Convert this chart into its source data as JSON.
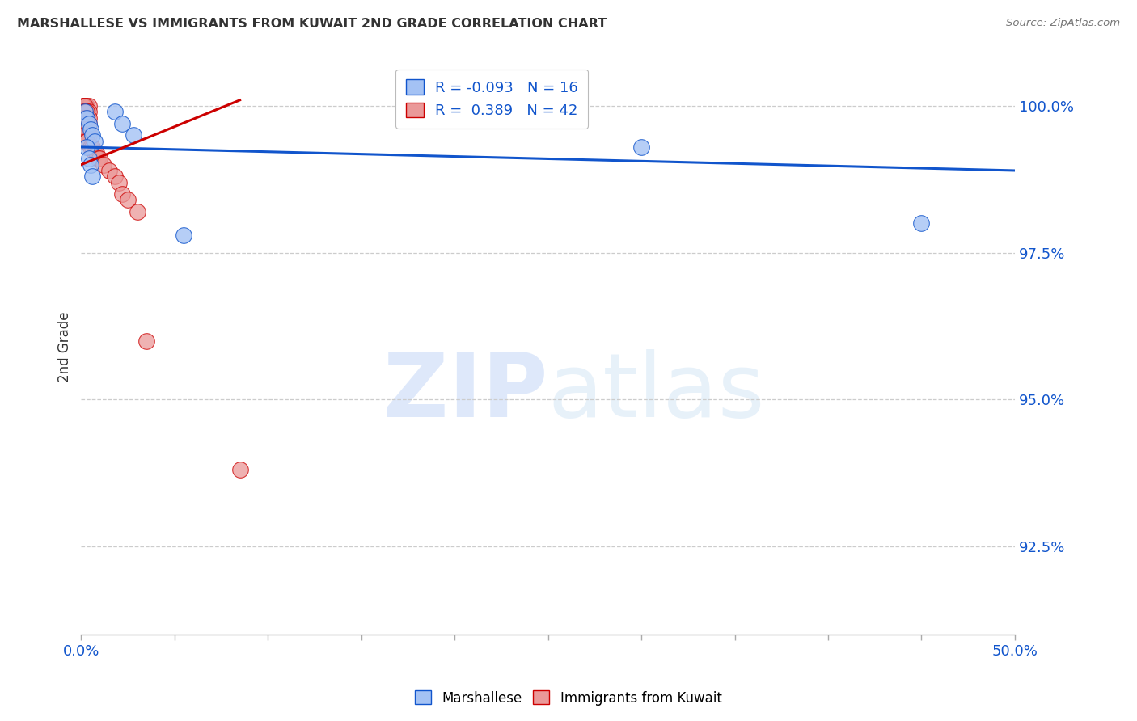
{
  "title": "MARSHALLESE VS IMMIGRANTS FROM KUWAIT 2ND GRADE CORRELATION CHART",
  "source": "Source: ZipAtlas.com",
  "ylabel": "2nd Grade",
  "ylabel_ticks": [
    "100.0%",
    "97.5%",
    "95.0%",
    "92.5%"
  ],
  "ylabel_values": [
    1.0,
    0.975,
    0.95,
    0.925
  ],
  "xmin": 0.0,
  "xmax": 0.5,
  "ymin": 0.91,
  "ymax": 1.008,
  "legend_blue_r": "-0.093",
  "legend_blue_n": "16",
  "legend_pink_r": "0.389",
  "legend_pink_n": "42",
  "blue_color": "#a4c2f4",
  "pink_color": "#ea9999",
  "blue_line_color": "#1155cc",
  "pink_line_color": "#cc0000",
  "blue_scatter_x": [
    0.002,
    0.003,
    0.004,
    0.005,
    0.006,
    0.007,
    0.003,
    0.004,
    0.005,
    0.006,
    0.018,
    0.022,
    0.028,
    0.055,
    0.3,
    0.45
  ],
  "blue_scatter_y": [
    0.999,
    0.998,
    0.997,
    0.996,
    0.995,
    0.994,
    0.993,
    0.991,
    0.99,
    0.988,
    0.999,
    0.997,
    0.995,
    0.978,
    0.993,
    0.98
  ],
  "pink_scatter_x": [
    0.001,
    0.002,
    0.003,
    0.004,
    0.001,
    0.002,
    0.003,
    0.004,
    0.001,
    0.002,
    0.003,
    0.004,
    0.001,
    0.002,
    0.003,
    0.004,
    0.001,
    0.002,
    0.003,
    0.004,
    0.001,
    0.002,
    0.003,
    0.004,
    0.001,
    0.002,
    0.003,
    0.005,
    0.006,
    0.007,
    0.008,
    0.009,
    0.01,
    0.012,
    0.015,
    0.018,
    0.02,
    0.022,
    0.025,
    0.03,
    0.035,
    0.085
  ],
  "pink_scatter_y": [
    1.0,
    1.0,
    1.0,
    1.0,
    1.0,
    1.0,
    0.999,
    0.999,
    0.999,
    0.999,
    0.999,
    0.998,
    0.998,
    0.998,
    0.998,
    0.997,
    0.997,
    0.997,
    0.997,
    0.996,
    0.996,
    0.996,
    0.995,
    0.995,
    0.995,
    0.994,
    0.994,
    0.993,
    0.993,
    0.992,
    0.992,
    0.991,
    0.991,
    0.99,
    0.989,
    0.988,
    0.987,
    0.985,
    0.984,
    0.982,
    0.96,
    0.938
  ],
  "blue_line_x0": 0.0,
  "blue_line_x1": 0.5,
  "blue_line_y0": 0.993,
  "blue_line_y1": 0.989,
  "pink_line_x0": 0.0,
  "pink_line_x1": 0.085,
  "pink_line_y0": 0.99,
  "pink_line_y1": 1.001,
  "watermark_zip": "ZIP",
  "watermark_atlas": "atlas",
  "background_color": "#ffffff",
  "grid_color": "#cccccc"
}
